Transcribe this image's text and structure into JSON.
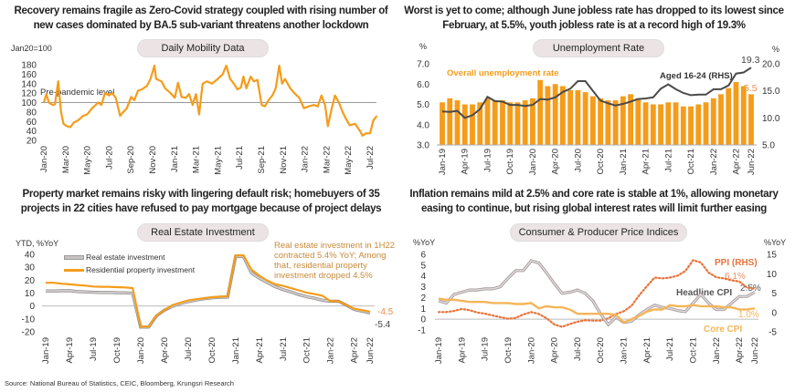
{
  "headlines": [
    "Recovery remains fragile as Zero-Covid strategy coupled with rising number of new cases dominated by BA.5 sub-variant threatens another lockdown",
    "Worst is yet to come; although June jobless rate has dropped to its lowest since February, at 5.5%, youth jobless rate is at a record high of 19.3%",
    "Property market remains risky with lingering default risk; homebuyers of 35 projects in 22 cities have refused to pay mortgage because of project delays",
    "Inflation remains mild at 2.5% and core rate is stable at 1%, allowing monetary easing to continue, but rising global interest rates will limit further easing"
  ],
  "source": "Source: National Bureau of Statistics, CEIC, Bloomberg, Krungsri Research",
  "colors": {
    "orange": "#f59c1a",
    "dark_gray": "#4a4a4a",
    "light_gray": "#bdb5b5",
    "ppi": "#e8733a",
    "core": "#f5b55a",
    "annotation": "#c8893a",
    "pill_bg": "#ece4e4"
  },
  "chart_data": [
    {
      "type": "line",
      "title": "Daily Mobility Data",
      "ylabel": "Jan20=100",
      "ylim": [
        20,
        180
      ],
      "yticks": [
        "20",
        "40",
        "60",
        "80",
        "100",
        "120",
        "140",
        "160",
        "180"
      ],
      "xticks": [
        "Jan-20",
        "Mar-20",
        "May-20",
        "Jul-20",
        "Sep-20",
        "Nov-20",
        "Jan-21",
        "Mar-21",
        "May-21",
        "Jul-21",
        "Sep-21",
        "Nov-21",
        "Jan-22",
        "Mar-22",
        "May-22",
        "Jul-22"
      ],
      "reference_line": {
        "value": 100,
        "label": "Pre-pandemic level"
      },
      "series": [
        {
          "x": [
            "2020-01-01",
            "2020-01-08",
            "2020-01-15",
            "2020-01-25",
            "2020-02-01",
            "2020-02-10",
            "2020-02-18",
            "2020-02-25",
            "2020-03-05",
            "2020-03-15",
            "2020-03-25",
            "2020-04-05",
            "2020-04-20",
            "2020-05-01",
            "2020-05-15",
            "2020-06-01",
            "2020-06-10",
            "2020-06-20",
            "2020-07-01",
            "2020-07-10",
            "2020-07-20",
            "2020-08-01",
            "2020-08-10",
            "2020-08-20",
            "2020-09-01",
            "2020-09-10",
            "2020-09-20",
            "2020-10-01",
            "2020-10-15",
            "2020-10-25",
            "2020-11-05",
            "2020-11-10",
            "2020-11-25",
            "2020-12-05",
            "2020-12-20",
            "2021-01-01",
            "2021-01-10",
            "2021-01-20",
            "2021-02-01",
            "2021-02-10",
            "2021-02-20",
            "2021-03-01",
            "2021-03-10",
            "2021-03-20",
            "2021-04-01",
            "2021-04-15",
            "2021-05-01",
            "2021-05-15",
            "2021-05-25",
            "2021-06-05",
            "2021-06-15",
            "2021-06-25",
            "2021-07-05",
            "2021-07-12",
            "2021-07-20",
            "2021-08-01",
            "2021-08-10",
            "2021-08-20",
            "2021-09-01",
            "2021-09-10",
            "2021-09-20",
            "2021-10-01",
            "2021-10-10",
            "2021-10-20",
            "2021-10-28",
            "2021-11-05",
            "2021-11-20",
            "2021-12-01",
            "2021-12-15",
            "2021-12-28",
            "2022-01-10",
            "2022-01-25",
            "2022-02-05",
            "2022-02-15",
            "2022-02-25",
            "2022-03-05",
            "2022-03-15",
            "2022-03-25",
            "2022-04-05",
            "2022-04-15",
            "2022-04-25",
            "2022-05-05",
            "2022-05-20",
            "2022-06-01",
            "2022-06-10",
            "2022-06-20",
            "2022-07-01",
            "2022-07-10",
            "2022-07-20"
          ],
          "values": [
            100,
            118,
            100,
            95,
            96,
            145,
            80,
            55,
            50,
            48,
            58,
            62,
            72,
            75,
            88,
            100,
            95,
            120,
            115,
            120,
            110,
            72,
            80,
            88,
            112,
            105,
            125,
            128,
            135,
            150,
            178,
            150,
            145,
            130,
            120,
            110,
            142,
            112,
            110,
            118,
            95,
            118,
            75,
            140,
            145,
            140,
            150,
            160,
            178,
            150,
            140,
            128,
            132,
            155,
            130,
            155,
            145,
            148,
            95,
            92,
            105,
            115,
            130,
            178,
            140,
            150,
            130,
            120,
            110,
            88,
            92,
            95,
            92,
            115,
            95,
            50,
            85,
            115,
            100,
            80,
            65,
            52,
            55,
            42,
            30,
            35,
            35,
            62,
            72
          ]
        }
      ]
    },
    {
      "type": "bar+line",
      "title": "Unemployment Rate",
      "ylabel_left": "%",
      "ylabel_right": "%",
      "ylim_left": [
        3.0,
        7.0
      ],
      "ylim_right": [
        5.0,
        20.0
      ],
      "yticks_left": [
        "3.0",
        "4.0",
        "5.0",
        "6.0",
        "7.0"
      ],
      "yticks_right": [
        "5.0",
        "10.0",
        "15.0",
        "20.0"
      ],
      "xticks": [
        "Jan-19",
        "Apr-19",
        "Jul-19",
        "Oct-19",
        "Jan-20",
        "Apr-20",
        "Jul-20",
        "Oct-20",
        "Jan-21",
        "Apr-21",
        "Jul-21",
        "Oct-21",
        "Jan-22",
        "Apr-22",
        "Jun-22"
      ],
      "series": [
        {
          "name": "Overall unemployment rate",
          "axis": "left",
          "type": "bar",
          "values": [
            5.1,
            5.3,
            5.2,
            5.0,
            5.0,
            5.1,
            5.3,
            5.2,
            5.2,
            5.1,
            5.1,
            5.2,
            5.3,
            6.2,
            5.9,
            6.0,
            5.9,
            5.7,
            5.7,
            5.6,
            5.4,
            5.3,
            5.2,
            5.2,
            5.4,
            5.5,
            5.3,
            5.1,
            5.0,
            5.0,
            5.1,
            5.1,
            4.9,
            4.9,
            5.0,
            5.1,
            5.3,
            5.5,
            5.8,
            6.1,
            5.9,
            5.5
          ],
          "last_label": "5.5"
        },
        {
          "name": "Aged 16-24 (RHS)",
          "axis": "right",
          "type": "line",
          "values": [
            11.2,
            11.1,
            11.3,
            10.0,
            10.5,
            11.6,
            13.9,
            13.1,
            13.0,
            12.4,
            12.4,
            12.2,
            12.4,
            13.5,
            13.4,
            13.8,
            14.8,
            15.4,
            16.8,
            16.8,
            15.0,
            13.2,
            12.7,
            12.3,
            12.6,
            13.0,
            13.5,
            13.6,
            13.8,
            15.4,
            16.2,
            15.3,
            14.6,
            14.2,
            14.3,
            14.3,
            15.3,
            15.3,
            16.0,
            18.2,
            18.4,
            19.3
          ],
          "last_label": "19.3"
        }
      ]
    },
    {
      "type": "line",
      "title": "Real Estate Investment",
      "ylabel": "YTD, %YoY",
      "ylim": [
        -20,
        40
      ],
      "yticks": [
        "-20",
        "-10",
        "0",
        "10",
        "20",
        "30",
        "40"
      ],
      "xticks": [
        "Jan-19",
        "Apr-19",
        "Jul-19",
        "Oct-19",
        "Jan-20",
        "Apr-20",
        "Jul-20",
        "Oct-20",
        "Jan-21",
        "Apr-21",
        "Jul-21",
        "Oct-21",
        "Jan-22",
        "Apr-22",
        "Jun-22"
      ],
      "legend": "top-left",
      "annotation": [
        "Real estate investment in 1H22",
        "contracted 5.4% YoY; Among",
        "that, residential property",
        "investment dropped 4.5%"
      ],
      "series": [
        {
          "name": "Real estate investment",
          "values": [
            11.6,
            11.6,
            11.8,
            11.9,
            11.2,
            10.9,
            10.6,
            10.5,
            10.5,
            10.3,
            10.2,
            9.9,
            -16.3,
            -16.3,
            -7.7,
            -3.3,
            -0.3,
            1.9,
            3.4,
            4.6,
            5.6,
            6.3,
            6.8,
            7.0,
            38.3,
            38.3,
            25.6,
            21.6,
            18.3,
            15.0,
            12.7,
            10.9,
            8.8,
            7.2,
            6.0,
            4.4,
            3.7,
            3.7,
            0.7,
            -2.7,
            -4.0,
            -5.4
          ],
          "last_label": "-5.4"
        },
        {
          "name": "Residential property investment",
          "values": [
            18.0,
            18.0,
            17.3,
            16.8,
            16.3,
            15.8,
            15.1,
            14.9,
            14.9,
            14.6,
            14.4,
            13.9,
            -16.0,
            -16.0,
            -7.3,
            -3.3,
            0.6,
            2.6,
            4.3,
            5.3,
            6.0,
            6.8,
            7.2,
            7.6,
            39.2,
            39.2,
            28.3,
            23.5,
            19.7,
            16.9,
            15.6,
            13.8,
            12.1,
            10.3,
            9.2,
            7.9,
            3.7,
            3.7,
            0.7,
            -2.1,
            -3.2,
            -4.5
          ],
          "last_label": "-4.5"
        }
      ]
    },
    {
      "type": "line",
      "title": "Consumer & Producer Price Indices",
      "ylabel_left": "%YoY",
      "ylabel_right": "%YoY",
      "ylim_left": [
        -1,
        6
      ],
      "ylim_right": [
        -5,
        15
      ],
      "yticks_left": [
        "-1",
        "0",
        "1",
        "2",
        "3",
        "4",
        "5",
        "6"
      ],
      "yticks_right": [
        "-5",
        "0",
        "5",
        "10",
        "15"
      ],
      "xticks": [
        "Jan-19",
        "Apr-19",
        "Jul-19",
        "Oct-19",
        "Jan-20",
        "Apr-20",
        "Jul-20",
        "Oct-20",
        "Jan-21",
        "Apr-21",
        "Jul-21",
        "Oct-21",
        "Jan-22",
        "Apr-22",
        "Jun-22"
      ],
      "series": [
        {
          "name": "Headline CPI",
          "axis": "left",
          "values": [
            1.7,
            1.5,
            2.3,
            2.5,
            2.7,
            2.7,
            2.8,
            2.8,
            3.0,
            3.8,
            4.5,
            4.5,
            5.4,
            5.2,
            4.3,
            3.3,
            2.4,
            2.5,
            2.7,
            2.4,
            1.7,
            0.5,
            -0.5,
            0.2,
            -0.3,
            -0.2,
            0.4,
            0.9,
            1.3,
            1.1,
            1.0,
            0.8,
            0.7,
            1.5,
            2.3,
            1.5,
            0.9,
            0.9,
            1.5,
            2.1,
            2.1,
            2.5
          ],
          "last_label": "2.5%"
        },
        {
          "name": "Core CPI",
          "axis": "left",
          "values": [
            1.9,
            1.8,
            1.8,
            1.7,
            1.6,
            1.6,
            1.6,
            1.5,
            1.5,
            1.5,
            1.4,
            1.4,
            1.5,
            1.0,
            1.2,
            1.1,
            1.1,
            0.9,
            0.5,
            0.5,
            0.5,
            0.5,
            0.5,
            0.4,
            -0.3,
            0.0,
            0.3,
            0.7,
            0.9,
            0.9,
            1.3,
            1.2,
            1.2,
            1.3,
            1.2,
            1.2,
            1.2,
            1.1,
            1.1,
            0.9,
            0.9,
            1.0
          ],
          "last_label": "1.0%"
        },
        {
          "name": "PPI (RHS)",
          "axis": "right",
          "values": [
            0.1,
            0.1,
            0.4,
            0.9,
            0.6,
            0.0,
            -0.3,
            -0.8,
            -1.2,
            -1.6,
            -1.4,
            -0.5,
            0.1,
            -0.4,
            -1.5,
            -3.1,
            -3.7,
            -3.0,
            -2.4,
            -2.0,
            -2.1,
            -2.1,
            -1.5,
            -0.4,
            0.3,
            1.7,
            4.4,
            6.8,
            9.0,
            8.8,
            9.0,
            9.5,
            10.7,
            13.5,
            12.9,
            10.3,
            9.1,
            8.8,
            8.3,
            8.0,
            6.4,
            6.1
          ],
          "last_label": "6.1%"
        }
      ]
    }
  ]
}
